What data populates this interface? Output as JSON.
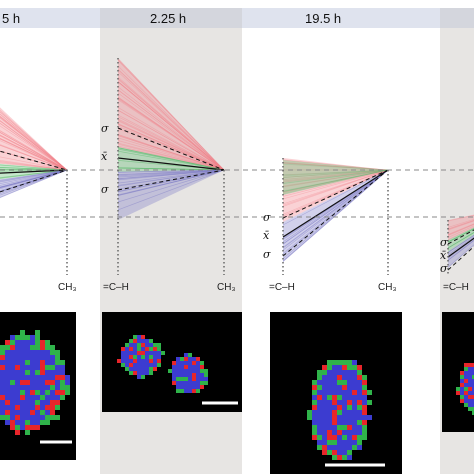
{
  "headers": [
    "5 h",
    "2.25 h",
    "19.5 h"
  ],
  "axis_labels": {
    "left_end": "=C–H",
    "right_end": "CH₃"
  },
  "stat_labels": {
    "sigma": "σ",
    "mean": "x̄"
  },
  "colors": {
    "header_band": "#dfe3ee",
    "panel_shade": "#e7e5e3",
    "red": "#f07f86",
    "green": "#5dba6e",
    "blue": "#7d7ac6",
    "cell_red": "#e8252a",
    "cell_green": "#2fb34a",
    "cell_blue": "#3c3cd0",
    "image_bg": "#000000",
    "dashed_ref": "#888888"
  }
}
